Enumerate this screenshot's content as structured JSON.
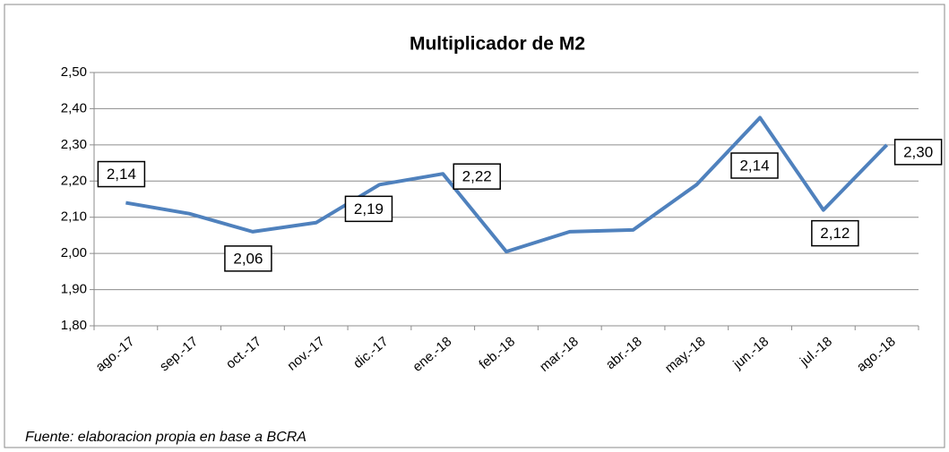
{
  "chart_data": {
    "type": "line",
    "title": "Multiplicador de M2",
    "categories": [
      "ago.-17",
      "sep.-17",
      "oct.-17",
      "nov.-17",
      "dic.-17",
      "ene.-18",
      "feb.-18",
      "mar.-18",
      "abr.-18",
      "may.-18",
      "jun.-18",
      "jul.-18",
      "ago.-18"
    ],
    "series": [
      {
        "name": "Multiplicador de M2",
        "color": "#4f81bd",
        "values": [
          2.14,
          2.11,
          2.06,
          2.085,
          2.19,
          2.22,
          2.005,
          2.06,
          2.065,
          2.19,
          2.375,
          2.12,
          2.3
        ],
        "value_labels": [
          "2,14",
          null,
          "2,06",
          null,
          "2,19",
          "2,22",
          null,
          null,
          null,
          null,
          null,
          "2,12",
          "2,30"
        ]
      }
    ],
    "annotations": [
      "2,14"
    ],
    "ylim": [
      1.8,
      2.5
    ],
    "yticks": [
      {
        "value": 1.8,
        "label": "1,80"
      },
      {
        "value": 1.9,
        "label": "1,90"
      },
      {
        "value": 2.0,
        "label": "2,00"
      },
      {
        "value": 2.1,
        "label": "2,10"
      },
      {
        "value": 2.2,
        "label": "2,20"
      },
      {
        "value": 2.3,
        "label": "2,30"
      },
      {
        "value": 2.4,
        "label": "2,40"
      },
      {
        "value": 2.5,
        "label": "2,50"
      }
    ],
    "grid": true,
    "note": "Fuente: elaboracion propia en base a BCRA"
  }
}
